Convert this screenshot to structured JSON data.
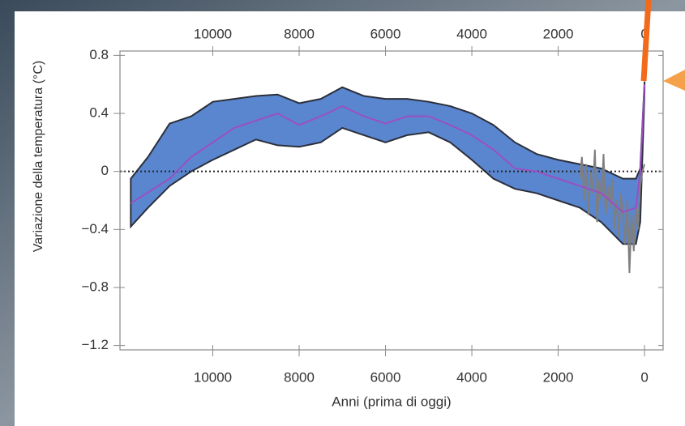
{
  "chart_data": {
    "type": "line",
    "xlabel": "Anni (prima di oggi)",
    "ylabel": "Variazione della temperatura (°C)",
    "xlim": [
      12150,
      -430
    ],
    "xticks": [
      10000,
      8000,
      6000,
      4000,
      2000,
      0
    ],
    "ylim": [
      -1.23,
      0.83
    ],
    "yticks": [
      0.8,
      0.4,
      0,
      {
        "value": -0.4,
        "label": "−0.4"
      },
      {
        "value": -0.8,
        "label": "−0.8"
      },
      {
        "value": -1.2,
        "label": "−1.2"
      }
    ],
    "reference_line": 0,
    "band": {
      "color": "#5a86cf",
      "x": [
        11900,
        11500,
        11000,
        10500,
        10000,
        9500,
        9000,
        8500,
        8000,
        7500,
        7000,
        6500,
        6000,
        5500,
        5000,
        4500,
        4000,
        3500,
        3000,
        2500,
        2000,
        1500,
        1000,
        500,
        200,
        100,
        0
      ],
      "upper": [
        -0.05,
        0.1,
        0.33,
        0.38,
        0.48,
        0.5,
        0.52,
        0.53,
        0.47,
        0.5,
        0.58,
        0.52,
        0.5,
        0.5,
        0.48,
        0.45,
        0.4,
        0.32,
        0.2,
        0.12,
        0.08,
        0.05,
        0.02,
        -0.05,
        -0.05,
        0.02,
        0.62
      ],
      "lower": [
        -0.38,
        -0.25,
        -0.1,
        0.0,
        0.08,
        0.15,
        0.22,
        0.18,
        0.17,
        0.2,
        0.3,
        0.25,
        0.2,
        0.25,
        0.27,
        0.2,
        0.08,
        -0.05,
        -0.12,
        -0.15,
        -0.2,
        -0.25,
        -0.35,
        -0.5,
        -0.5,
        -0.35,
        0.55
      ]
    },
    "series": [
      {
        "color": "#7f7f7f",
        "x": [
          1500,
          1450,
          1400,
          1350,
          1300,
          1250,
          1200,
          1150,
          1100,
          1050,
          1000,
          950,
          900,
          850,
          800,
          750,
          700,
          650,
          600,
          550,
          500,
          450,
          400,
          350,
          300,
          250,
          200,
          150,
          100,
          50,
          0
        ],
        "values": [
          -0.05,
          0.1,
          -0.2,
          0.05,
          -0.3,
          0.0,
          -0.15,
          0.15,
          -0.35,
          -0.05,
          -0.2,
          0.12,
          -0.3,
          -0.1,
          -0.25,
          -0.05,
          -0.4,
          -0.2,
          -0.45,
          -0.15,
          -0.3,
          -0.5,
          -0.2,
          -0.7,
          -0.3,
          -0.55,
          -0.25,
          -0.4,
          -0.1,
          0.0,
          0.05
        ]
      },
      {
        "color": "#9b4fc2",
        "x": [
          11900,
          11000,
          10500,
          10000,
          9500,
          9000,
          8500,
          8000,
          7500,
          7000,
          6500,
          6000,
          5500,
          5000,
          4500,
          4000,
          3500,
          3000,
          2500,
          2000,
          1500,
          1000,
          500,
          200,
          100,
          0
        ],
        "values": [
          -0.22,
          -0.05,
          0.1,
          0.2,
          0.3,
          0.35,
          0.4,
          0.32,
          0.38,
          0.45,
          0.38,
          0.33,
          0.38,
          0.38,
          0.32,
          0.25,
          0.15,
          0.02,
          0.0,
          -0.05,
          -0.1,
          -0.15,
          -0.28,
          -0.25,
          0.0,
          0.6
        ]
      }
    ]
  }
}
